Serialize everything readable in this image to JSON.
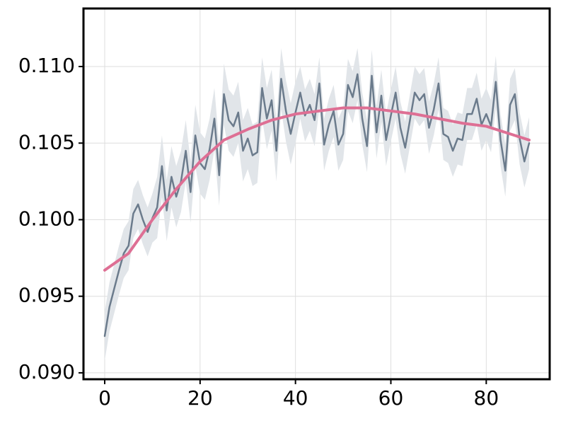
{
  "chart_data": {
    "type": "line",
    "x": [
      0,
      1,
      2,
      3,
      4,
      5,
      6,
      7,
      8,
      9,
      10,
      11,
      12,
      13,
      14,
      15,
      16,
      17,
      18,
      19,
      20,
      21,
      22,
      23,
      24,
      25,
      26,
      27,
      28,
      29,
      30,
      31,
      32,
      33,
      34,
      35,
      36,
      37,
      38,
      39,
      40,
      41,
      42,
      43,
      44,
      45,
      46,
      47,
      48,
      49,
      50,
      51,
      52,
      53,
      54,
      55,
      56,
      57,
      58,
      59,
      60,
      61,
      62,
      63,
      64,
      65,
      66,
      67,
      68,
      69,
      70,
      71,
      72,
      73,
      74,
      75,
      76,
      77,
      78,
      79,
      80,
      81,
      82,
      83,
      84,
      85,
      86,
      87,
      88,
      89
    ],
    "series": [
      {
        "color": "#6b7b8c",
        "band_color": "#e1e5e9",
        "values": [
          0.0924,
          0.0943,
          0.0955,
          0.0967,
          0.0978,
          0.0983,
          0.1004,
          0.101,
          0.1,
          0.0992,
          0.1001,
          0.1008,
          0.1035,
          0.1006,
          0.1028,
          0.1015,
          0.1025,
          0.1045,
          0.1018,
          0.1055,
          0.1037,
          0.1033,
          0.1046,
          0.1066,
          0.1029,
          0.1082,
          0.1065,
          0.1061,
          0.107,
          0.1045,
          0.1053,
          0.1042,
          0.1044,
          0.1086,
          0.1066,
          0.1078,
          0.1045,
          0.1092,
          0.1071,
          0.1056,
          0.107,
          0.1083,
          0.1068,
          0.1075,
          0.1065,
          0.1089,
          0.1049,
          0.1062,
          0.1071,
          0.1049,
          0.1056,
          0.1088,
          0.108,
          0.1095,
          0.1066,
          0.1048,
          0.1094,
          0.1057,
          0.1081,
          0.1052,
          0.1068,
          0.1083,
          0.106,
          0.1047,
          0.1065,
          0.1083,
          0.1078,
          0.1082,
          0.106,
          0.1072,
          0.1089,
          0.1056,
          0.1054,
          0.1045,
          0.1053,
          0.1052,
          0.1069,
          0.1069,
          0.1079,
          0.1062,
          0.1069,
          0.1061,
          0.109,
          0.1052,
          0.1032,
          0.1075,
          0.1082,
          0.1053,
          0.1038,
          0.105
        ],
        "lower": [
          0.0908,
          0.0927,
          0.0939,
          0.0951,
          0.0962,
          0.0967,
          0.0988,
          0.0994,
          0.0984,
          0.0976,
          0.0985,
          0.0988,
          0.1015,
          0.0986,
          0.1008,
          0.0995,
          0.1005,
          0.1025,
          0.0998,
          0.1035,
          0.1017,
          0.1013,
          0.1026,
          0.1046,
          0.1009,
          0.1062,
          0.1045,
          0.1041,
          0.105,
          0.1025,
          0.1033,
          0.1022,
          0.1024,
          0.1066,
          0.1046,
          0.1058,
          0.1025,
          0.1072,
          0.1051,
          0.1036,
          0.105,
          0.1066,
          0.1051,
          0.1058,
          0.1048,
          0.1072,
          0.1032,
          0.1045,
          0.1054,
          0.1032,
          0.1039,
          0.1071,
          0.1063,
          0.1078,
          0.1049,
          0.1031,
          0.1077,
          0.104,
          0.1064,
          0.1035,
          0.1051,
          0.1066,
          0.1043,
          0.103,
          0.1048,
          0.1066,
          0.1061,
          0.1065,
          0.1043,
          0.1055,
          0.1072,
          0.1039,
          0.1037,
          0.1028,
          0.1036,
          0.1035,
          0.1052,
          0.1052,
          0.1062,
          0.1045,
          0.1052,
          0.1044,
          0.1073,
          0.1035,
          0.1015,
          0.1058,
          0.1065,
          0.1036,
          0.1021,
          0.1033
        ],
        "upper": [
          0.094,
          0.0959,
          0.0971,
          0.0983,
          0.0994,
          0.0999,
          0.102,
          0.1026,
          0.1016,
          0.1008,
          0.1017,
          0.1028,
          0.1055,
          0.1026,
          0.1048,
          0.1035,
          0.1045,
          0.1065,
          0.1038,
          0.1075,
          0.1057,
          0.1053,
          0.1066,
          0.1086,
          0.1049,
          0.1102,
          0.1085,
          0.1081,
          0.109,
          0.1065,
          0.1073,
          0.1062,
          0.1064,
          0.1106,
          0.1086,
          0.1098,
          0.1065,
          0.1112,
          0.1091,
          0.1076,
          0.109,
          0.11,
          0.1085,
          0.1092,
          0.1082,
          0.1106,
          0.1066,
          0.1079,
          0.1088,
          0.1066,
          0.1073,
          0.1105,
          0.1097,
          0.1112,
          0.1083,
          0.1065,
          0.1111,
          0.1074,
          0.1098,
          0.1069,
          0.1085,
          0.11,
          0.1077,
          0.1064,
          0.1082,
          0.11,
          0.1095,
          0.1099,
          0.1077,
          0.1089,
          0.1106,
          0.1073,
          0.1071,
          0.1062,
          0.107,
          0.1069,
          0.1086,
          0.1086,
          0.1096,
          0.1079,
          0.1086,
          0.1078,
          0.1107,
          0.1069,
          0.1049,
          0.1092,
          0.1099,
          0.107,
          0.1055,
          0.1067
        ]
      },
      {
        "color": "#de6f94",
        "x": [
          0,
          5,
          10,
          15,
          20,
          25,
          30,
          35,
          40,
          45,
          50,
          55,
          60,
          65,
          70,
          75,
          80,
          85,
          89
        ],
        "values": [
          0.0967,
          0.0978,
          0.1,
          0.102,
          0.1038,
          0.1052,
          0.1059,
          0.1065,
          0.1069,
          0.1071,
          0.1073,
          0.1073,
          0.1071,
          0.1069,
          0.1066,
          0.1063,
          0.1061,
          0.1056,
          0.1052
        ]
      }
    ],
    "xlim": [
      -4.45,
      93.3
    ],
    "ylim": [
      0.08958,
      0.11379
    ],
    "xticks": [
      0,
      20,
      40,
      60,
      80
    ],
    "yticks": [
      {
        "value": 0.09,
        "label": "0.090"
      },
      0.095,
      {
        "value": 0.1,
        "label": "0.100"
      },
      0.105,
      {
        "value": 0.11,
        "label": "0.110"
      }
    ],
    "grid": true
  }
}
